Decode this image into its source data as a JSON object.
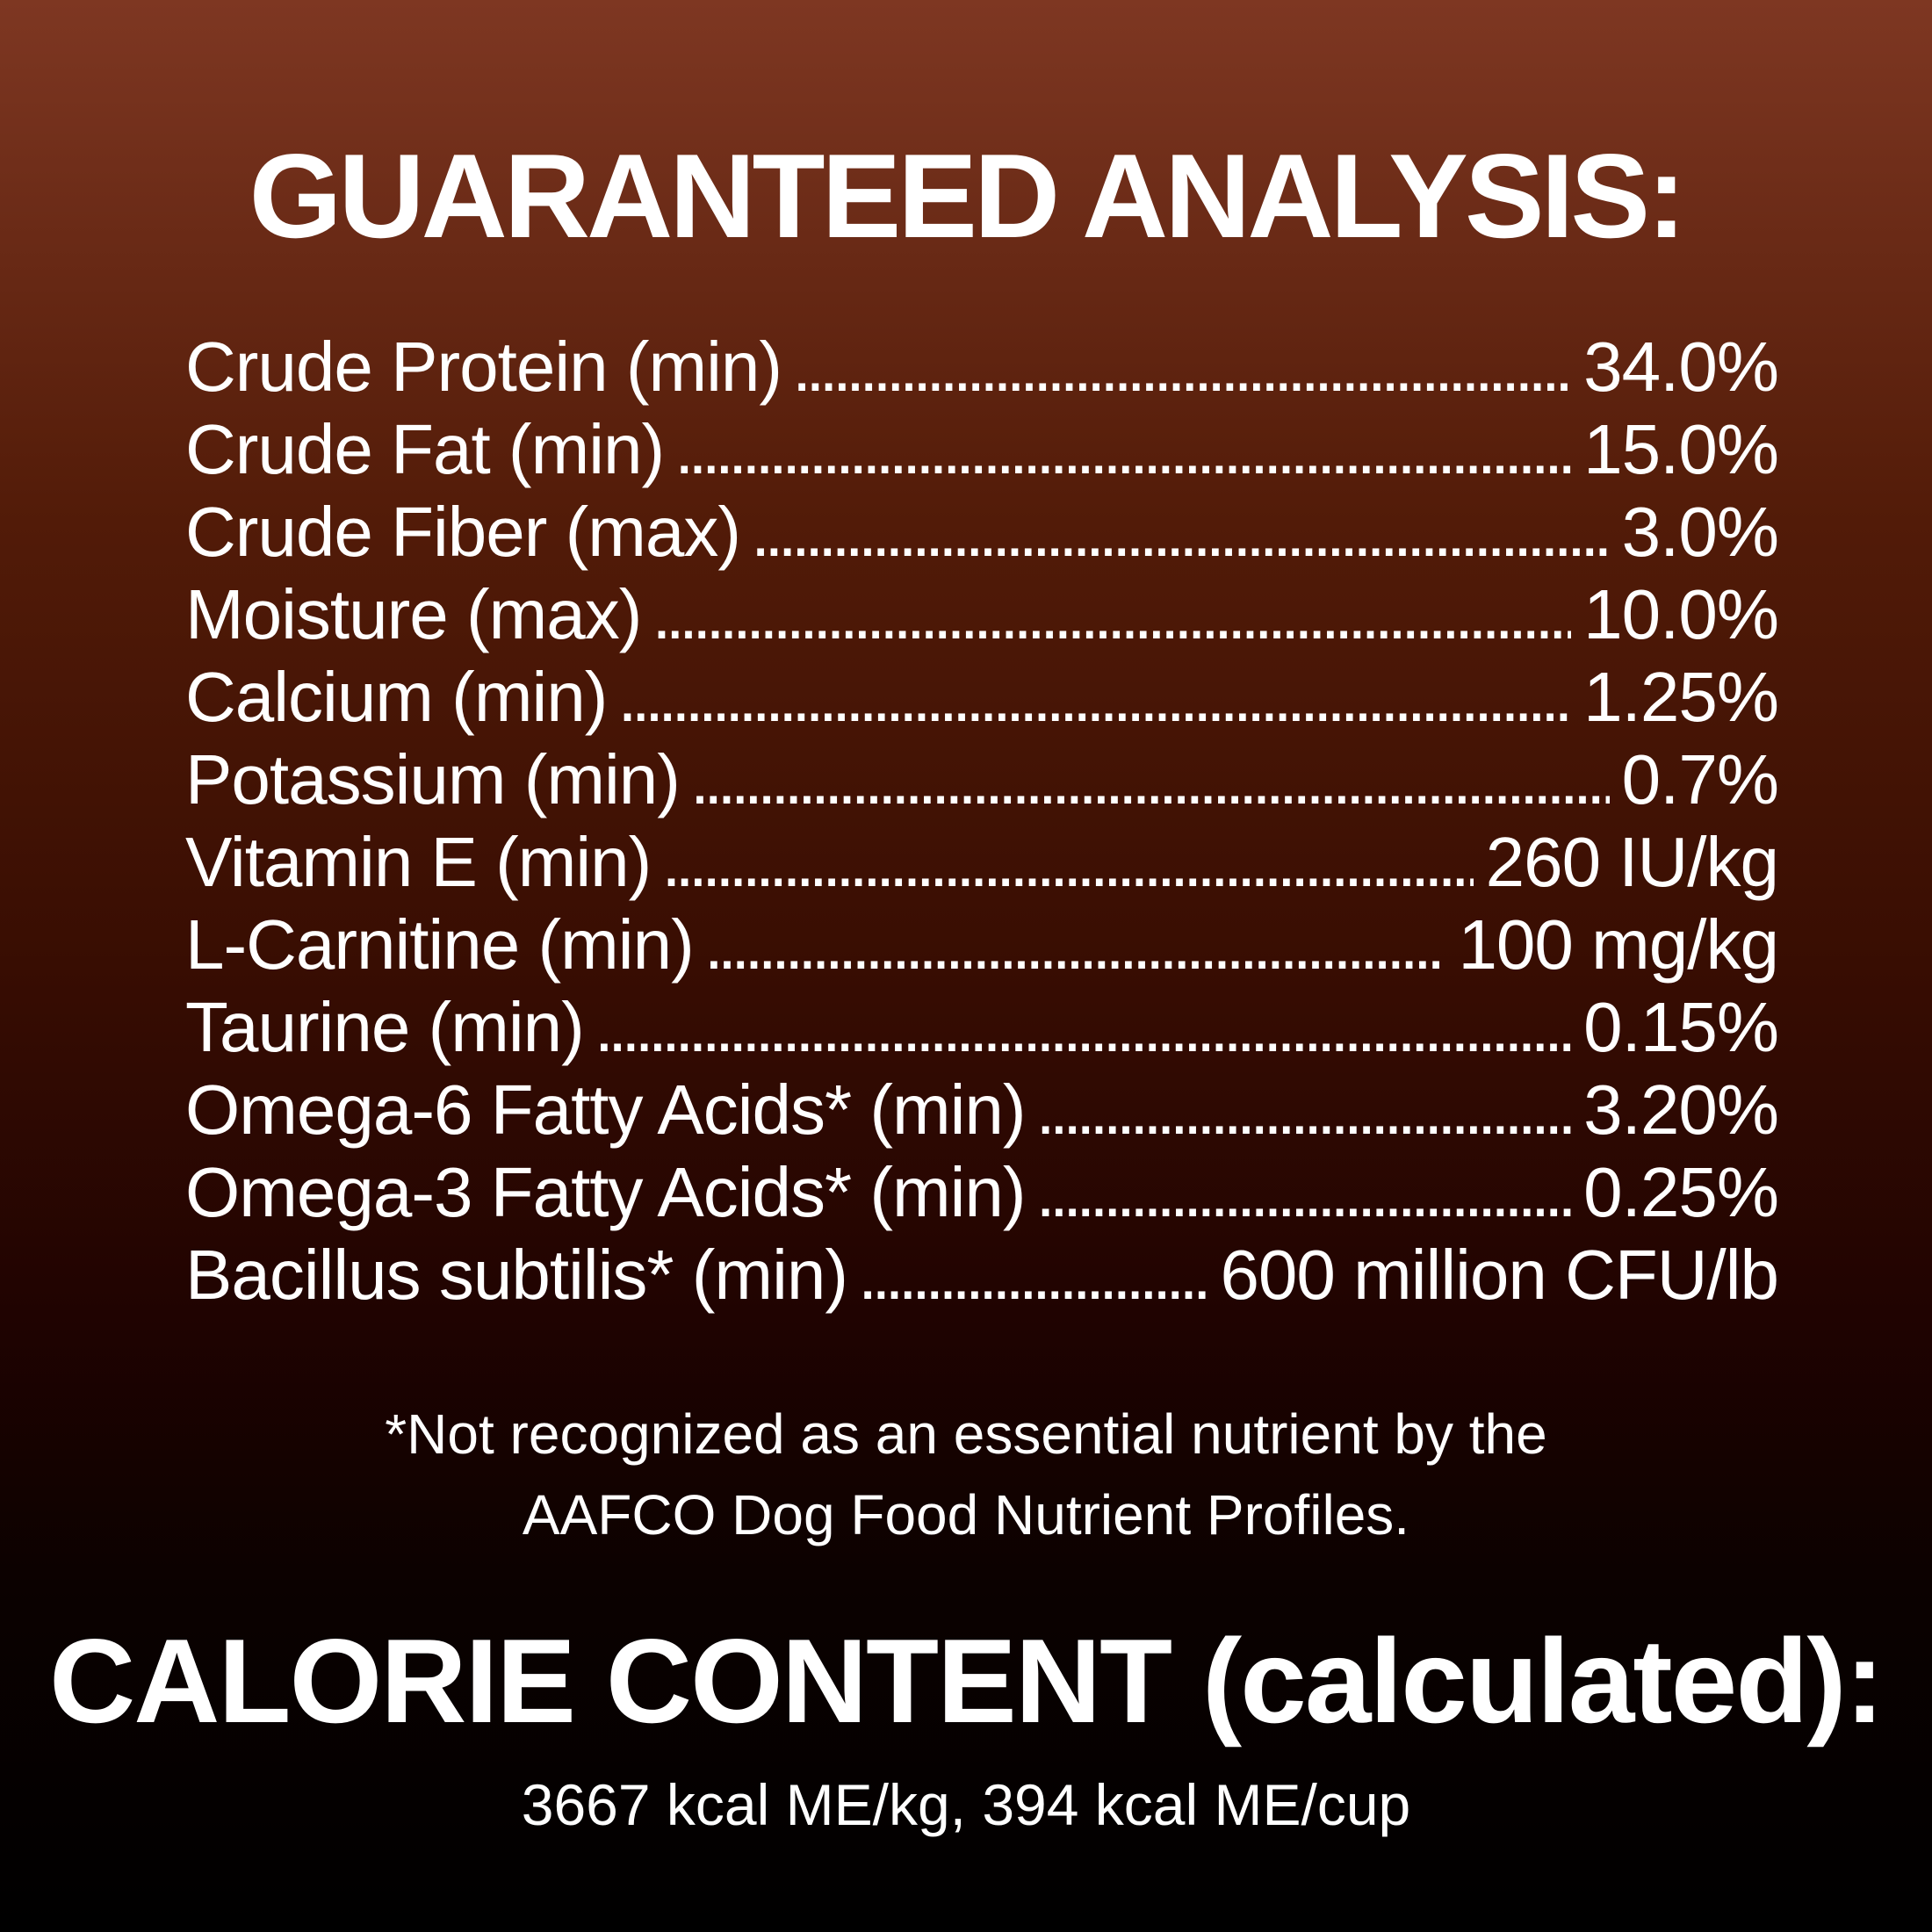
{
  "label": {
    "title": "GUARANTEED ANALYSIS:",
    "analysis_rows": [
      {
        "label": "Crude Protein (min)",
        "value": "34.0%"
      },
      {
        "label": "Crude Fat (min)",
        "value": "15.0%"
      },
      {
        "label": "Crude Fiber (max)",
        "value": "3.0%"
      },
      {
        "label": "Moisture (max)",
        "value": "10.0%"
      },
      {
        "label": "Calcium (min)",
        "value": "1.25%"
      },
      {
        "label": "Potassium (min)",
        "value": "0.7%"
      },
      {
        "label": "Vitamin E (min)",
        "value": "260 IU/kg"
      },
      {
        "label": "L-Carnitine (min)",
        "value": "100 mg/kg"
      },
      {
        "label": "Taurine (min)",
        "value": "0.15%"
      },
      {
        "label": "Omega-6 Fatty Acids* (min)",
        "value": "3.20%"
      },
      {
        "label": "Omega-3 Fatty Acids* (min)",
        "value": "0.25%"
      },
      {
        "label": "Bacillus subtilis* (min)",
        "value": "600 million CFU/lb"
      }
    ],
    "footnote": {
      "line1": "*Not recognized as an essential nutrient by the",
      "line2": "AAFCO Dog Food Nutrient Profiles."
    },
    "calorie": {
      "title": "CALORIE CONTENT (calculated):",
      "values": "3667 kcal ME/kg, 394 kcal ME/cup"
    },
    "colors": {
      "text": "#ffffff",
      "bg_top": "#7e3722",
      "bg_upper": "#521b08",
      "bg_mid": "#380d02",
      "bg_lower": "#200301",
      "bg_deep": "#0b0100",
      "bg_bottom": "#000000"
    }
  }
}
